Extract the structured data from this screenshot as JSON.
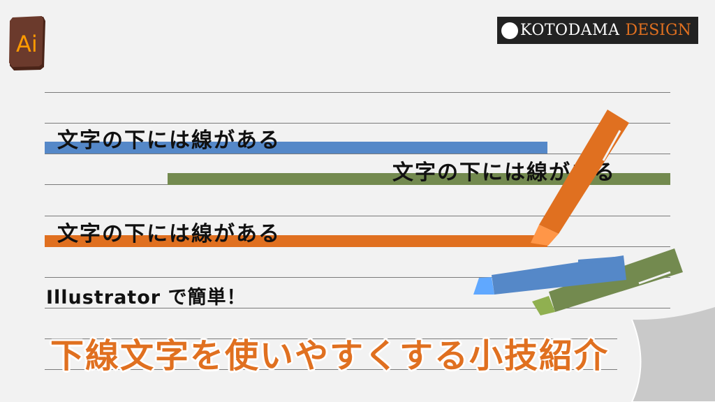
{
  "logo": {
    "app": "Ai",
    "brand_primary": "Kotodama",
    "brand_secondary": "Design"
  },
  "samples": [
    {
      "text": "文字の下には線がある",
      "color": "#5588c8"
    },
    {
      "text": "文字の下には線がある",
      "color": "#738a4f"
    },
    {
      "text": "文字の下には線がある",
      "color": "#e07020"
    }
  ],
  "subtitle": "Illustrator で簡単！",
  "title": "下線文字を使いやすくする小技紹介",
  "colors": {
    "accent": "#e07020",
    "background": "#f2f2f2",
    "logo_bg": "#6b3a2c",
    "logo_text": "#ff9a00"
  }
}
